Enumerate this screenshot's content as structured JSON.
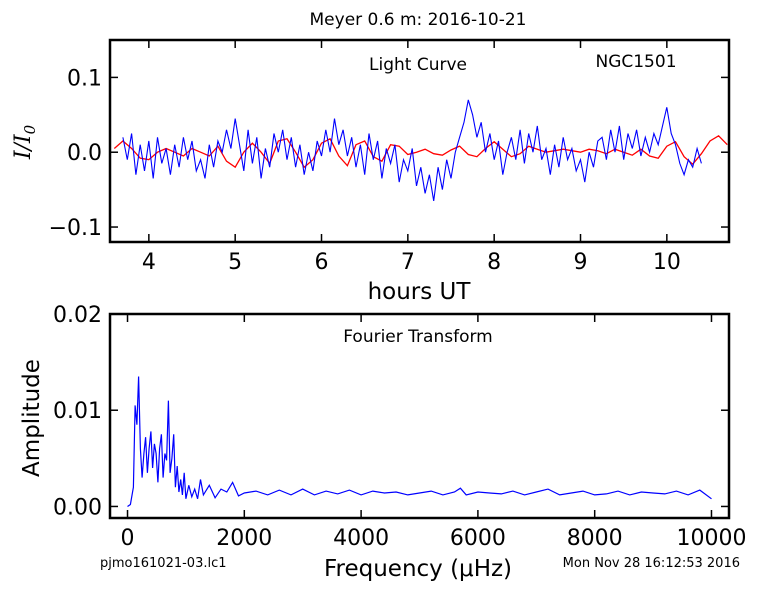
{
  "figure": {
    "suptitle": "Meyer 0.6 m:  2016-10-21",
    "footer_left": "pjmo161021-03.lc1",
    "footer_right": "Mon Nov 28 16:12:53 2016"
  },
  "colors": {
    "data": "#0000ff",
    "model": "#ff0000",
    "axes": "#000000"
  },
  "chart_data": [
    {
      "type": "line",
      "title": "Light Curve",
      "annotation": "NGC1501",
      "xlabel": "hours UT",
      "ylabel": "I/I0",
      "xlim": [
        3.55,
        10.72
      ],
      "ylim": [
        -0.12,
        0.15
      ],
      "xticks": [
        4,
        5,
        6,
        7,
        8,
        9,
        10
      ],
      "xtick_labels": [
        "4",
        "5",
        "6",
        "7",
        "8",
        "9",
        "10"
      ],
      "yticks": [
        -0.1,
        0.0,
        0.1
      ],
      "ytick_labels": [
        "−0.1",
        "0.0",
        "0.1"
      ],
      "grid": false,
      "series": [
        {
          "role": "data",
          "color": "#0000ff",
          "x": [
            3.7,
            3.75,
            3.8,
            3.85,
            3.9,
            3.95,
            4.0,
            4.05,
            4.1,
            4.15,
            4.2,
            4.25,
            4.3,
            4.35,
            4.4,
            4.45,
            4.5,
            4.55,
            4.6,
            4.65,
            4.7,
            4.75,
            4.8,
            4.85,
            4.9,
            4.95,
            5.0,
            5.05,
            5.1,
            5.15,
            5.2,
            5.25,
            5.3,
            5.35,
            5.4,
            5.45,
            5.5,
            5.55,
            5.6,
            5.65,
            5.7,
            5.75,
            5.8,
            5.85,
            5.9,
            5.95,
            6.0,
            6.05,
            6.1,
            6.15,
            6.2,
            6.25,
            6.3,
            6.35,
            6.4,
            6.45,
            6.5,
            6.55,
            6.6,
            6.65,
            6.7,
            6.75,
            6.8,
            6.85,
            6.9,
            6.95,
            7.0,
            7.05,
            7.1,
            7.15,
            7.2,
            7.25,
            7.3,
            7.35,
            7.4,
            7.45,
            7.5,
            7.55,
            7.6,
            7.65,
            7.7,
            7.75,
            7.8,
            7.85,
            7.9,
            7.95,
            8.0,
            8.05,
            8.1,
            8.15,
            8.2,
            8.25,
            8.3,
            8.35,
            8.4,
            8.45,
            8.5,
            8.55,
            8.6,
            8.65,
            8.7,
            8.75,
            8.8,
            8.85,
            8.9,
            8.95,
            9.0,
            9.05,
            9.1,
            9.15,
            9.2,
            9.25,
            9.3,
            9.35,
            9.4,
            9.45,
            9.5,
            9.55,
            9.6,
            9.65,
            9.7,
            9.75,
            9.8,
            9.85,
            9.9,
            9.95,
            10.0,
            10.05,
            10.1,
            10.15,
            10.2,
            10.25,
            10.3,
            10.35,
            10.4
          ],
          "y": [
            0.02,
            -0.01,
            0.025,
            -0.03,
            0.01,
            -0.025,
            0.015,
            -0.035,
            0.02,
            -0.015,
            0.005,
            -0.03,
            0.01,
            -0.02,
            0.02,
            -0.01,
            0.015,
            -0.025,
            -0.01,
            -0.035,
            0.01,
            -0.02,
            0.015,
            0.0,
            0.03,
            0.005,
            0.045,
            0.01,
            -0.025,
            0.03,
            -0.015,
            0.02,
            -0.035,
            0.005,
            -0.02,
            0.025,
            0.0,
            0.03,
            -0.01,
            0.02,
            -0.02,
            0.01,
            -0.03,
            0.0,
            -0.025,
            0.015,
            -0.005,
            0.03,
            0.0,
            0.045,
            0.01,
            0.03,
            -0.005,
            0.02,
            -0.02,
            0.01,
            -0.03,
            0.025,
            -0.01,
            0.015,
            -0.035,
            0.005,
            -0.015,
            0.01,
            -0.04,
            -0.01,
            -0.025,
            0.005,
            -0.045,
            -0.02,
            -0.055,
            -0.03,
            -0.065,
            -0.02,
            -0.05,
            -0.01,
            -0.035,
            0.0,
            0.02,
            0.04,
            0.07,
            0.05,
            0.02,
            0.04,
            0.0,
            0.025,
            -0.01,
            0.015,
            -0.03,
            0.0,
            0.02,
            -0.01,
            0.03,
            -0.015,
            0.025,
            0.0,
            0.035,
            -0.01,
            0.005,
            -0.03,
            0.01,
            -0.02,
            0.02,
            -0.01,
            0.005,
            -0.025,
            -0.01,
            -0.04,
            0.0,
            -0.02,
            0.015,
            0.02,
            -0.01,
            0.03,
            0.0,
            0.035,
            -0.01,
            0.025,
            0.005,
            0.03,
            -0.005,
            0.02,
            0.0,
            0.025,
            0.01,
            0.035,
            0.06,
            0.025,
            0.01,
            -0.015,
            -0.03,
            -0.01,
            -0.02,
            0.005,
            -0.015
          ]
        },
        {
          "role": "model",
          "color": "#ff0000",
          "x": [
            3.6,
            3.7,
            3.8,
            3.9,
            4.0,
            4.1,
            4.2,
            4.3,
            4.4,
            4.5,
            4.6,
            4.7,
            4.8,
            4.9,
            5.0,
            5.1,
            5.2,
            5.3,
            5.4,
            5.5,
            5.6,
            5.7,
            5.8,
            5.9,
            6.0,
            6.1,
            6.2,
            6.3,
            6.4,
            6.5,
            6.6,
            6.7,
            6.8,
            6.9,
            7.0,
            7.1,
            7.2,
            7.3,
            7.4,
            7.5,
            7.6,
            7.7,
            7.8,
            7.9,
            8.0,
            8.1,
            8.2,
            8.3,
            8.4,
            8.5,
            8.6,
            8.7,
            8.8,
            8.9,
            9.0,
            9.1,
            9.2,
            9.3,
            9.4,
            9.5,
            9.6,
            9.7,
            9.8,
            9.9,
            10.0,
            10.1,
            10.2,
            10.3,
            10.4,
            10.5,
            10.6,
            10.7
          ],
          "y": [
            0.005,
            0.015,
            0.005,
            -0.008,
            -0.01,
            0.0,
            0.005,
            0.0,
            -0.005,
            0.005,
            0.0,
            -0.005,
            0.008,
            -0.012,
            -0.02,
            0.0,
            0.012,
            0.0,
            -0.015,
            0.015,
            0.018,
            0.0,
            -0.02,
            -0.01,
            0.012,
            0.018,
            -0.005,
            -0.018,
            0.01,
            0.015,
            -0.006,
            -0.012,
            0.01,
            0.008,
            -0.003,
            0.0,
            0.004,
            -0.002,
            -0.004,
            0.003,
            0.008,
            -0.003,
            -0.006,
            0.005,
            0.014,
            0.004,
            -0.006,
            -0.002,
            0.008,
            0.004,
            0.0,
            0.002,
            0.004,
            0.002,
            0.0,
            0.004,
            0.002,
            -0.002,
            0.004,
            0.0,
            -0.004,
            0.004,
            -0.005,
            -0.008,
            0.008,
            0.014,
            -0.006,
            -0.016,
            -0.002,
            0.015,
            0.022,
            0.01
          ]
        }
      ]
    },
    {
      "type": "line",
      "title": "Fourier Transform",
      "xlabel": "Frequency (μHz)",
      "ylabel": "Amplitude",
      "xlim": [
        -300,
        10300
      ],
      "ylim": [
        -0.0012,
        0.02
      ],
      "xticks": [
        0,
        2000,
        4000,
        6000,
        8000,
        10000
      ],
      "xtick_labels": [
        "0",
        "2000",
        "4000",
        "6000",
        "8000",
        "10000"
      ],
      "yticks": [
        0.0,
        0.01,
        0.02
      ],
      "ytick_labels": [
        "0.00",
        "0.01",
        "0.02"
      ],
      "grid": false,
      "series": [
        {
          "role": "amplitude",
          "color": "#0000ff",
          "x": [
            0,
            50,
            100,
            130,
            160,
            190,
            220,
            250,
            280,
            310,
            340,
            370,
            400,
            430,
            460,
            490,
            520,
            550,
            580,
            610,
            640,
            670,
            700,
            730,
            760,
            790,
            820,
            850,
            880,
            910,
            940,
            970,
            1000,
            1050,
            1100,
            1150,
            1200,
            1250,
            1300,
            1400,
            1500,
            1600,
            1700,
            1800,
            1900,
            2000,
            2200,
            2400,
            2600,
            2800,
            3000,
            3200,
            3400,
            3600,
            3800,
            4000,
            4200,
            4400,
            4600,
            4800,
            5000,
            5200,
            5400,
            5600,
            5700,
            5800,
            6000,
            6200,
            6400,
            6600,
            6800,
            7000,
            7200,
            7400,
            7600,
            7800,
            8000,
            8200,
            8400,
            8600,
            8800,
            9000,
            9200,
            9400,
            9600,
            9800,
            10000
          ],
          "y": [
            0.0,
            0.0002,
            0.002,
            0.0105,
            0.0085,
            0.0135,
            0.006,
            0.003,
            0.0055,
            0.0072,
            0.0035,
            0.006,
            0.0078,
            0.004,
            0.0065,
            0.0055,
            0.0025,
            0.006,
            0.0075,
            0.003,
            0.0055,
            0.0048,
            0.011,
            0.0035,
            0.005,
            0.0075,
            0.002,
            0.0042,
            0.0015,
            0.0028,
            0.0012,
            0.0035,
            0.0008,
            0.0022,
            0.001,
            0.0018,
            0.0008,
            0.0028,
            0.0012,
            0.0022,
            0.0009,
            0.0018,
            0.0015,
            0.0025,
            0.0011,
            0.0014,
            0.0016,
            0.0012,
            0.0017,
            0.0012,
            0.0018,
            0.0012,
            0.0016,
            0.0013,
            0.0017,
            0.0012,
            0.0016,
            0.0014,
            0.0015,
            0.0012,
            0.0014,
            0.0016,
            0.0012,
            0.0015,
            0.0019,
            0.0012,
            0.0015,
            0.0014,
            0.0013,
            0.0016,
            0.0012,
            0.0015,
            0.0018,
            0.0012,
            0.0014,
            0.0016,
            0.0012,
            0.0013,
            0.0016,
            0.0012,
            0.0015,
            0.0014,
            0.0013,
            0.0016,
            0.0012,
            0.0017,
            0.0008
          ]
        }
      ]
    }
  ]
}
